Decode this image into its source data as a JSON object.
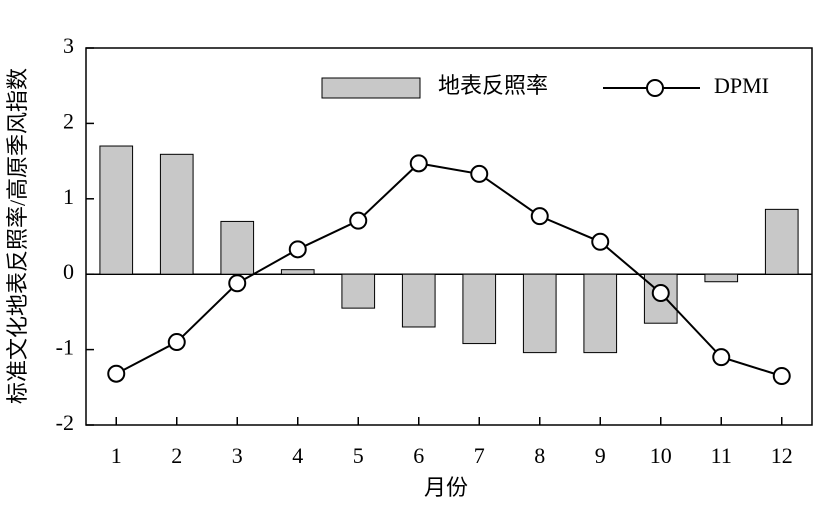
{
  "chart_data": {
    "type": "bar",
    "x_label": "月份",
    "y_label": "标准文化地表反照率/高原季风指数",
    "categories": [
      "1",
      "2",
      "3",
      "4",
      "5",
      "6",
      "7",
      "8",
      "9",
      "10",
      "11",
      "12"
    ],
    "series": [
      {
        "name": "地表反照率",
        "type": "bar",
        "color": "#c8c8c8",
        "values": [
          1.7,
          1.59,
          0.7,
          0.06,
          -0.45,
          -0.7,
          -0.92,
          -1.04,
          -1.04,
          -0.65,
          -0.1,
          0.86
        ]
      },
      {
        "name": "DPMI",
        "type": "line",
        "color": "#000000",
        "values": [
          -1.32,
          -0.9,
          -0.12,
          0.33,
          0.71,
          1.47,
          1.33,
          0.77,
          0.43,
          -0.25,
          -1.1,
          -1.35
        ]
      }
    ],
    "ylim": [
      -2,
      3
    ],
    "yticks": [
      -2,
      -1,
      0,
      1,
      2,
      3
    ],
    "legend": "upper right"
  }
}
